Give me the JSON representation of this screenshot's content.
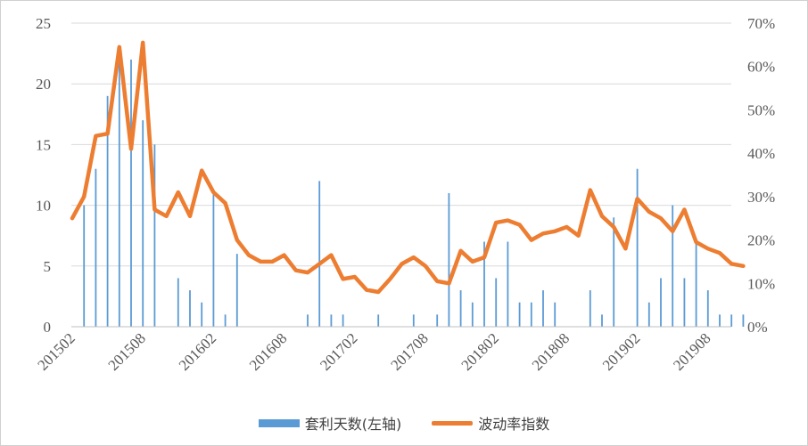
{
  "chart_data": {
    "type": "bar+line",
    "x_tick_labels": [
      "201502",
      "201508",
      "201602",
      "201608",
      "201702",
      "201708",
      "201802",
      "201808",
      "201902",
      "201908"
    ],
    "left_axis": {
      "ticks": [
        "0",
        "5",
        "10",
        "15",
        "20",
        "25"
      ],
      "ylim": [
        0,
        25
      ]
    },
    "right_axis": {
      "ticks": [
        "0%",
        "10%",
        "20%",
        "30%",
        "40%",
        "50%",
        "60%",
        "70%"
      ],
      "ylim": [
        0,
        0.7
      ]
    },
    "grid": "horizontal",
    "legend_position": "bottom",
    "colors": {
      "bars": "#5b9bd5",
      "line": "#ed7d31"
    },
    "series": [
      {
        "name": "套利天数(左轴)",
        "type": "bar",
        "axis": "left",
        "x": [
          "201502",
          "201503",
          "201504",
          "201505",
          "201506",
          "201507",
          "201508",
          "201509",
          "201510",
          "201511",
          "201512",
          "201601",
          "201602",
          "201603",
          "201604",
          "201605",
          "201606",
          "201607",
          "201608",
          "201609",
          "201610",
          "201611",
          "201612",
          "201701",
          "201702",
          "201703",
          "201704",
          "201705",
          "201706",
          "201707",
          "201708",
          "201709",
          "201710",
          "201711",
          "201712",
          "201801",
          "201802",
          "201803",
          "201804",
          "201805",
          "201806",
          "201807",
          "201808",
          "201809",
          "201810",
          "201811",
          "201812",
          "201901",
          "201902",
          "201903",
          "201904",
          "201905",
          "201906",
          "201907",
          "201908",
          "201909",
          "201910",
          "201911"
        ],
        "values": [
          0,
          10,
          13,
          19,
          22,
          22,
          17,
          15,
          0,
          4,
          3,
          2,
          11,
          1,
          6,
          0,
          0,
          0,
          0,
          0,
          1,
          12,
          1,
          1,
          0,
          0,
          1,
          0,
          0,
          1,
          0,
          1,
          11,
          3,
          2,
          7,
          4,
          7,
          2,
          2,
          3,
          2,
          0,
          0,
          3,
          1,
          9,
          0,
          13,
          2,
          4,
          10,
          4,
          7,
          3,
          1,
          1,
          1
        ]
      },
      {
        "name": "波动率指数",
        "type": "line",
        "axis": "right",
        "x": [
          "201502",
          "201503",
          "201504",
          "201505",
          "201506",
          "201507",
          "201508",
          "201509",
          "201510",
          "201511",
          "201512",
          "201601",
          "201602",
          "201603",
          "201604",
          "201605",
          "201606",
          "201607",
          "201608",
          "201609",
          "201610",
          "201611",
          "201612",
          "201701",
          "201702",
          "201703",
          "201704",
          "201705",
          "201706",
          "201707",
          "201708",
          "201709",
          "201710",
          "201711",
          "201712",
          "201801",
          "201802",
          "201803",
          "201804",
          "201805",
          "201806",
          "201807",
          "201808",
          "201809",
          "201810",
          "201811",
          "201812",
          "201901",
          "201902",
          "201903",
          "201904",
          "201905",
          "201906",
          "201907",
          "201908",
          "201909",
          "201910",
          "201911"
        ],
        "values": [
          0.25,
          0.3,
          0.44,
          0.445,
          0.645,
          0.41,
          0.655,
          0.27,
          0.255,
          0.31,
          0.255,
          0.36,
          0.31,
          0.285,
          0.2,
          0.165,
          0.15,
          0.15,
          0.165,
          0.13,
          0.125,
          0.145,
          0.165,
          0.11,
          0.115,
          0.085,
          0.08,
          0.11,
          0.145,
          0.16,
          0.14,
          0.105,
          0.1,
          0.175,
          0.15,
          0.16,
          0.24,
          0.245,
          0.235,
          0.2,
          0.215,
          0.22,
          0.23,
          0.21,
          0.315,
          0.255,
          0.23,
          0.18,
          0.295,
          0.265,
          0.25,
          0.22,
          0.27,
          0.195,
          0.18,
          0.17,
          0.145,
          0.14
        ]
      }
    ]
  }
}
